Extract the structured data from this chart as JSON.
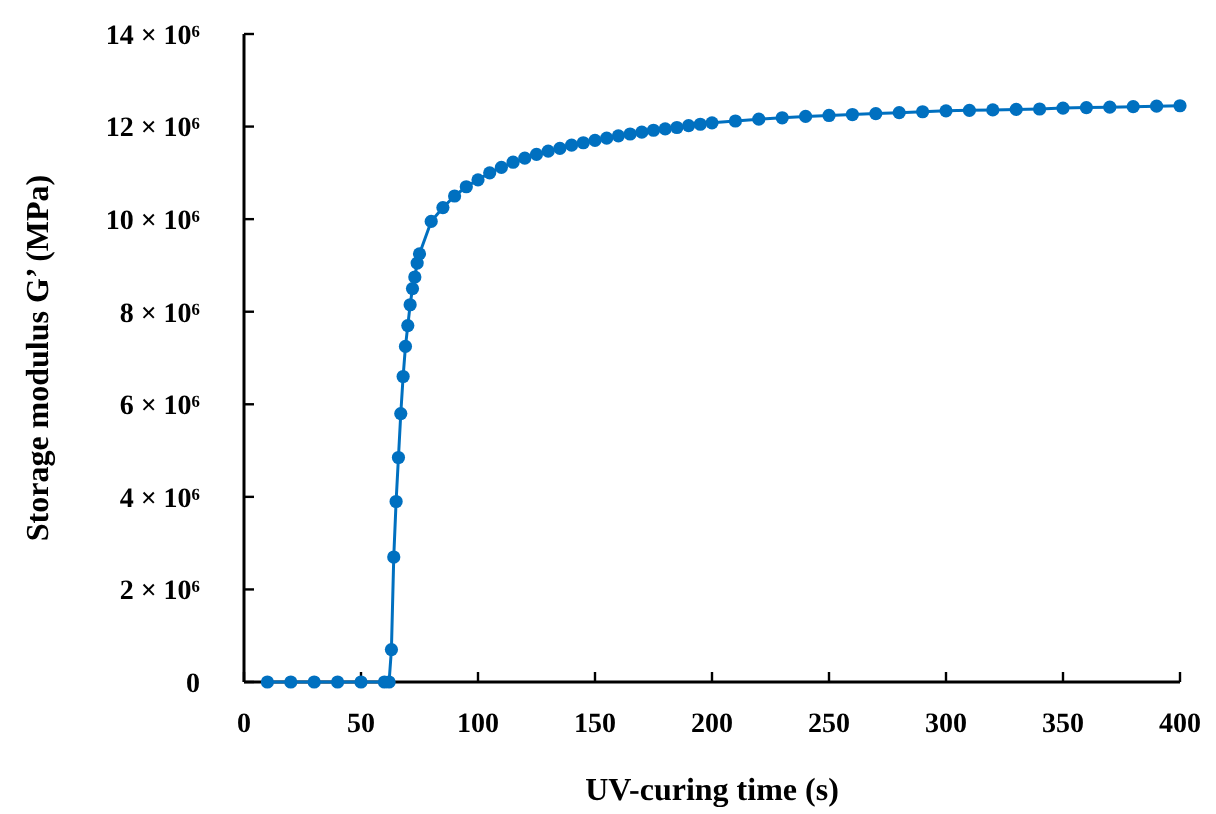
{
  "chart_data": {
    "type": "line",
    "xlabel": "UV-curing time (s)",
    "ylabel": "Storage modulus G’ (MPa)",
    "xlim": [
      0,
      400
    ],
    "xticks": [
      0,
      50,
      100,
      150,
      200,
      250,
      300,
      350,
      400
    ],
    "ylim": [
      0,
      14000000
    ],
    "yticks": [
      0,
      {
        "value": 2000000,
        "label": "2 × 10⁶"
      },
      {
        "value": 4000000,
        "label": "4 × 10⁶"
      },
      {
        "value": 6000000,
        "label": "6 × 10⁶"
      },
      {
        "value": 8000000,
        "label": "8 × 10⁶"
      },
      {
        "value": 10000000,
        "label": "10 × 10⁶"
      },
      {
        "value": 12000000,
        "label": "12 × 10⁶"
      },
      {
        "value": 14000000,
        "label": "14 × 10⁶"
      }
    ],
    "grid": false,
    "marker": "circle",
    "line_style": "solid",
    "series": [
      {
        "color": "#0070c0",
        "x": [
          10,
          20,
          30,
          40,
          50,
          60,
          62,
          63,
          64,
          65,
          66,
          67,
          68,
          69,
          70,
          71,
          72,
          73,
          74,
          75,
          80,
          85,
          90,
          95,
          100,
          105,
          110,
          115,
          120,
          125,
          130,
          135,
          140,
          145,
          150,
          155,
          160,
          165,
          170,
          175,
          180,
          185,
          190,
          195,
          200,
          210,
          220,
          230,
          240,
          250,
          260,
          270,
          280,
          290,
          300,
          310,
          320,
          330,
          340,
          350,
          360,
          370,
          380,
          390,
          400
        ],
        "values": [
          0,
          0,
          0,
          0,
          0,
          0,
          0,
          700000,
          2700000,
          3900000,
          4850000,
          5800000,
          6600000,
          7250000,
          7700000,
          8150000,
          8500000,
          8750000,
          9050000,
          9250000,
          9950000,
          10250000,
          10500000,
          10700000,
          10850000,
          11000000,
          11120000,
          11230000,
          11320000,
          11400000,
          11470000,
          11530000,
          11600000,
          11650000,
          11700000,
          11750000,
          11800000,
          11840000,
          11880000,
          11920000,
          11950000,
          11980000,
          12020000,
          12050000,
          12080000,
          12120000,
          12160000,
          12190000,
          12220000,
          12240000,
          12260000,
          12280000,
          12300000,
          12320000,
          12340000,
          12350000,
          12360000,
          12370000,
          12380000,
          12400000,
          12410000,
          12420000,
          12430000,
          12440000,
          12450000
        ]
      }
    ]
  }
}
